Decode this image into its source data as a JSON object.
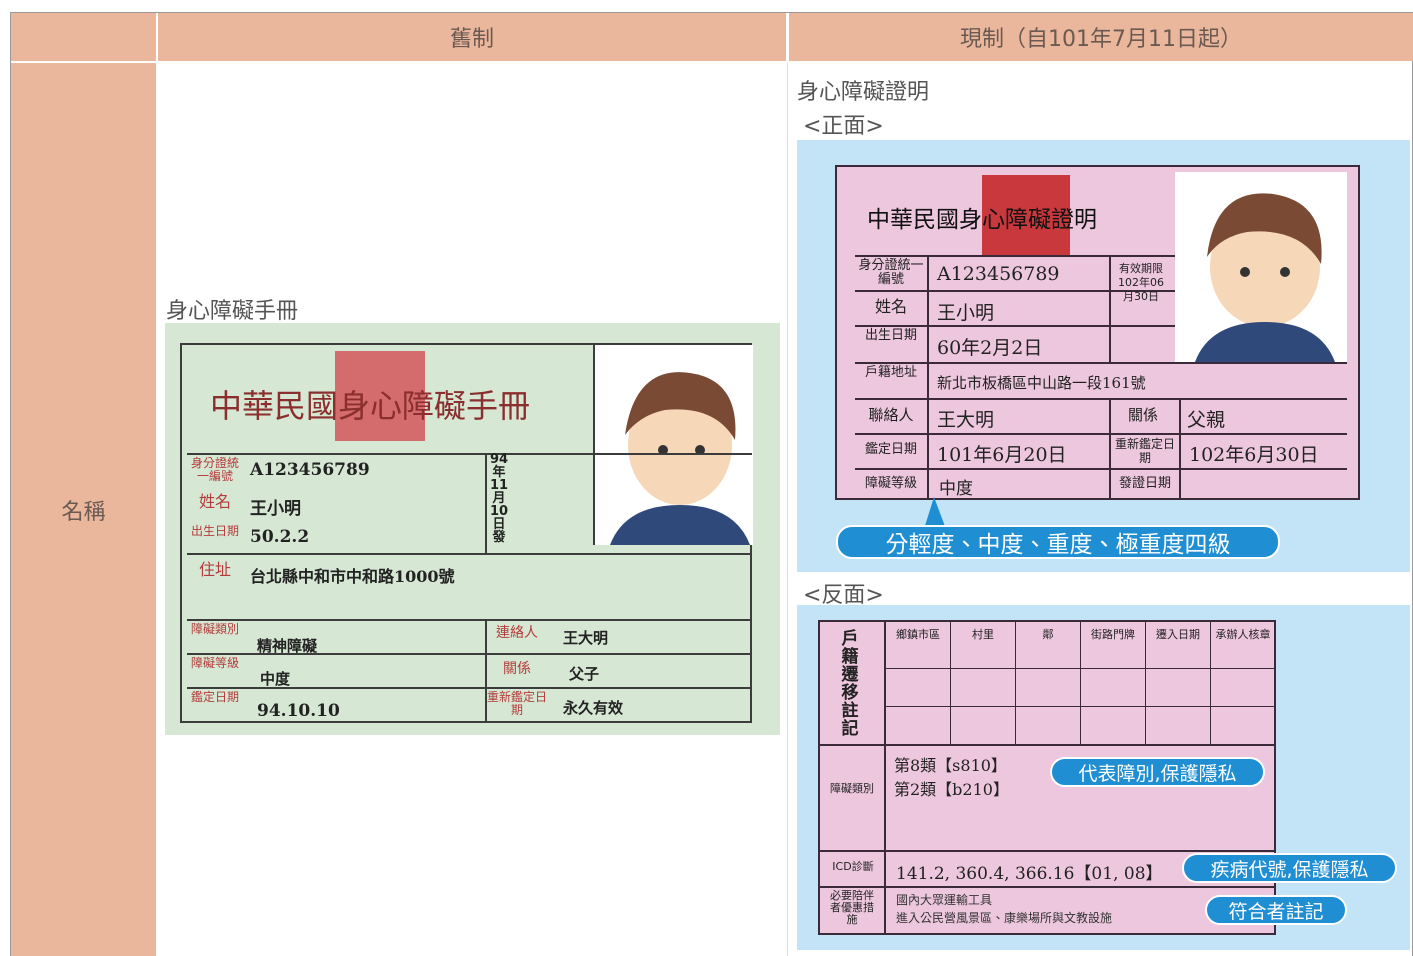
{
  "header": {
    "old": "舊制",
    "new": "現制（自101年7月11日起）"
  },
  "row_label": "名稱",
  "old": {
    "caption": "身心障礙手冊",
    "card": {
      "title": "中華民國身心障礙手冊",
      "id_label": "身分證統一編號",
      "id": "A123456789",
      "name_label": "姓名",
      "name": "王小明",
      "birth_label": "出生日期",
      "birth": "50.2.2",
      "address_label": "住址",
      "address": "台北縣中和市中和路1000號",
      "type_label": "障礙類別",
      "type": "精神障礙",
      "level_label": "障礙等級",
      "level": "中度",
      "date_label": "鑑定日期",
      "date": "94.10.10",
      "contact_label": "連絡人",
      "contact": "王大明",
      "relation_label": "關係",
      "relation": "父子",
      "renew_label": "重新鑑定日期",
      "renew": "永久有效",
      "issued": "94年11月10日發"
    }
  },
  "new": {
    "caption": "身心障礙證明",
    "front_label": "<正面>",
    "back_label": "<反面>",
    "front": {
      "title": "中華民國身心障礙證明",
      "id_label": "身分證統一編號",
      "id": "A123456789",
      "name_label": "姓名",
      "name": "王小明",
      "birth_label": "出生日期",
      "birth": "60年2月2日",
      "valid": "有效期限102年06月30日",
      "address_label": "戶籍地址",
      "address": "新北市板橋區中山路一段161號",
      "contact_label": "聯絡人",
      "contact": "王大明",
      "relation_label": "關係",
      "relation": "父親",
      "date_label": "鑑定日期",
      "date": "101年6月20日",
      "renew_label": "重新鑑定日期",
      "renew": "102年6月30日",
      "level_label": "障礙等級",
      "level": "中度",
      "issue_label": "發證日期",
      "callout": "分輕度、中度、重度、極重度四級"
    },
    "back": {
      "move_label": "戶籍遷移註記",
      "columns": [
        "鄉鎮市區",
        "村里",
        "鄰",
        "街路門牌",
        "遷入日期",
        "承辦人核章"
      ],
      "type_label": "障礙類別",
      "types": [
        "第8類【s810】",
        "第2類【b210】"
      ],
      "icd_label": "ICD診斷",
      "icd": "141.2, 360.4, 366.16【01, 08】",
      "support_label": "必要陪伴者優惠措施",
      "support": [
        "國內大眾運輸工具",
        "進入公民營風景區、康樂場所與文教設施"
      ],
      "callouts": [
        "代表障別,保護隱私",
        "疾病代號,保護隱私",
        "符合者註記"
      ]
    }
  }
}
